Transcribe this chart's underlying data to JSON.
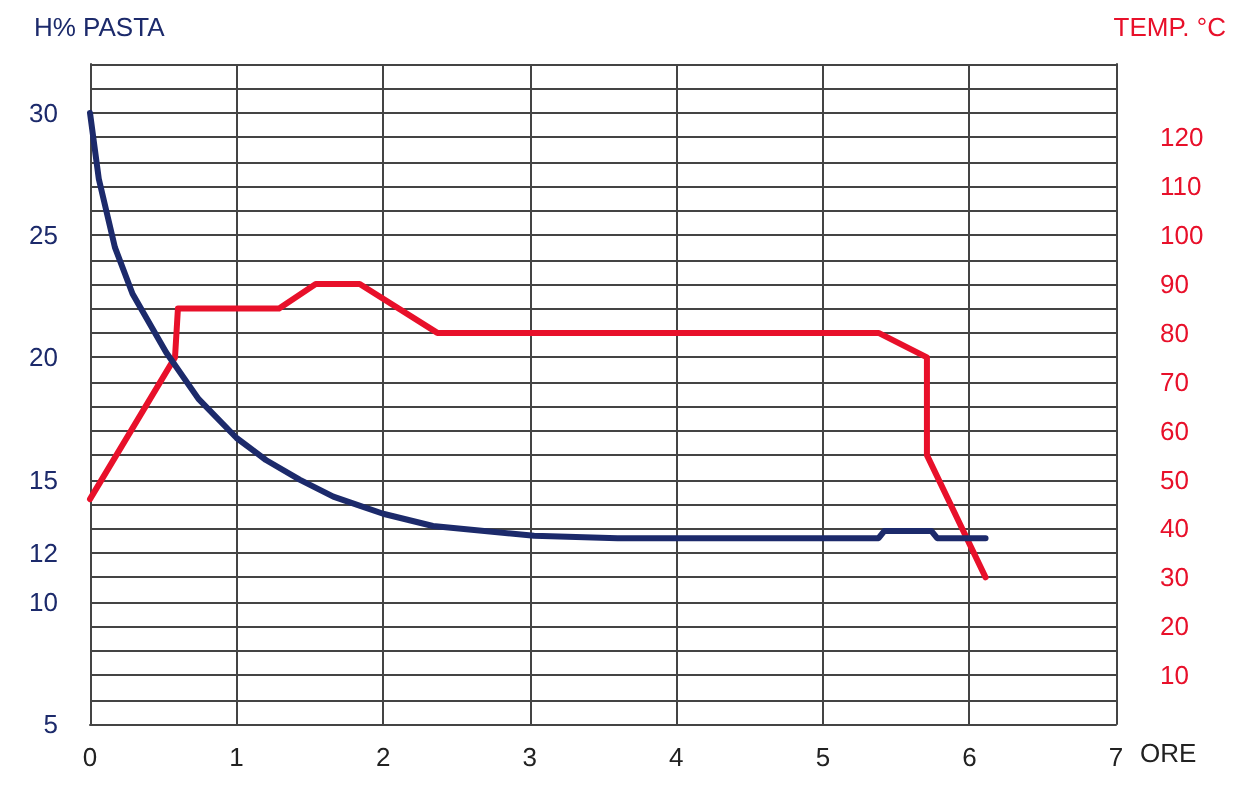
{
  "chart_data": {
    "type": "line",
    "xlabel": "ORE",
    "ylabel": "H% PASTA",
    "y2label": "TEMP. °C",
    "xlim": [
      0,
      7
    ],
    "xticks": [
      0,
      1,
      2,
      3,
      4,
      5,
      6,
      7
    ],
    "ylim": [
      5,
      32
    ],
    "yticks": [
      5,
      {
        "value": 6,
        "label": null
      },
      {
        "value": 7,
        "label": null
      },
      {
        "value": 8,
        "label": null
      },
      {
        "value": 9,
        "label": null
      },
      10,
      {
        "value": 11,
        "label": null
      },
      12,
      {
        "value": 13,
        "label": null
      },
      {
        "value": 14,
        "label": null
      },
      15,
      {
        "value": 16,
        "label": null
      },
      {
        "value": 17,
        "label": null
      },
      {
        "value": 18,
        "label": null
      },
      {
        "value": 19,
        "label": null
      },
      20,
      {
        "value": 21,
        "label": null
      },
      {
        "value": 22,
        "label": null
      },
      {
        "value": 23,
        "label": null
      },
      {
        "value": 24,
        "label": null
      },
      25,
      {
        "value": 26,
        "label": null
      },
      {
        "value": 27,
        "label": null
      },
      {
        "value": 28,
        "label": null
      },
      {
        "value": 29,
        "label": null
      },
      30,
      {
        "value": 31,
        "label": null
      },
      {
        "value": 32,
        "label": null
      }
    ],
    "y2lim": [
      0,
      135
    ],
    "y2ticks": [
      10,
      20,
      30,
      40,
      50,
      60,
      70,
      80,
      90,
      100,
      110,
      120
    ],
    "grid": true,
    "marker": "none",
    "line_style": "solid",
    "series": [
      {
        "color": "#1c2a6b",
        "x": [
          0,
          0.06,
          0.17,
          0.29,
          0.52,
          0.74,
          1.0,
          1.2,
          1.43,
          1.66,
          2.0,
          2.34,
          3.03,
          3.6,
          5.38,
          5.42,
          5.74,
          5.78,
          6.11
        ],
        "values": [
          30.0,
          27.3,
          24.5,
          22.6,
          20.2,
          18.3,
          16.7,
          15.8,
          15.0,
          14.3,
          13.6,
          13.1,
          12.7,
          12.6,
          12.6,
          12.9,
          12.9,
          12.6,
          12.6
        ]
      },
      {
        "color": "#e8102a",
        "axis": "y2",
        "x": [
          0,
          0.58,
          0.6,
          1.29,
          1.54,
          1.84,
          2.37,
          5.38,
          5.71,
          5.71,
          6.11
        ],
        "values": [
          46,
          75,
          85,
          85,
          90,
          90,
          80,
          80,
          75,
          55,
          30
        ]
      }
    ]
  }
}
